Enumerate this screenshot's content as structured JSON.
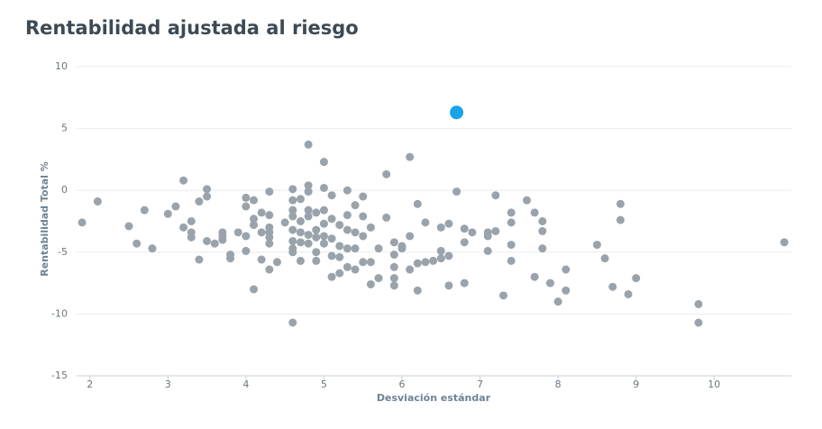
{
  "chart_data": {
    "type": "scatter",
    "title": "Rentabilidad ajustada al riesgo",
    "x_label": "Desviación estándar",
    "y_label": "Rentabilidad Total %",
    "xlim": [
      1.83,
      10.99
    ],
    "ylim": [
      -15,
      10
    ],
    "xticks": [
      2,
      3,
      4,
      5,
      6,
      7,
      8,
      9,
      10
    ],
    "yticks": [
      -15,
      -10,
      -5,
      0,
      5,
      10
    ],
    "grid": true,
    "series": [
      {
        "color": "#9aa3ab",
        "x": [
          1.9,
          2.1,
          2.5,
          2.6,
          2.7,
          2.8,
          3.0,
          3.1,
          3.2,
          3.2,
          3.3,
          3.3,
          3.3,
          3.4,
          3.4,
          3.5,
          3.5,
          3.5,
          3.6,
          3.7,
          3.7,
          3.7,
          3.8,
          3.8,
          3.9,
          4.0,
          4.0,
          4.0,
          4.0,
          4.1,
          4.1,
          4.1,
          4.1,
          4.2,
          4.2,
          4.2,
          4.3,
          4.3,
          4.3,
          4.3,
          4.3,
          4.3,
          4.3,
          4.4,
          4.5,
          4.6,
          4.6,
          4.6,
          4.6,
          4.6,
          4.6,
          4.6,
          4.6,
          4.6,
          4.7,
          4.7,
          4.7,
          4.7,
          4.7,
          4.8,
          4.8,
          4.8,
          4.8,
          4.8,
          4.8,
          4.8,
          4.9,
          4.9,
          4.9,
          4.9,
          4.9,
          5.0,
          5.0,
          5.0,
          5.0,
          5.0,
          5.0,
          5.1,
          5.1,
          5.1,
          5.1,
          5.1,
          5.2,
          5.2,
          5.2,
          5.2,
          5.3,
          5.3,
          5.3,
          5.3,
          5.3,
          5.4,
          5.4,
          5.4,
          5.4,
          5.5,
          5.5,
          5.5,
          5.5,
          5.6,
          5.6,
          5.6,
          5.7,
          5.7,
          5.8,
          5.8,
          5.9,
          5.9,
          5.9,
          5.9,
          5.9,
          6.0,
          6.0,
          6.1,
          6.1,
          6.1,
          6.2,
          6.2,
          6.2,
          6.3,
          6.3,
          6.4,
          6.5,
          6.5,
          6.5,
          6.6,
          6.6,
          6.6,
          6.7,
          6.8,
          6.8,
          6.8,
          6.9,
          7.1,
          7.1,
          7.1,
          7.2,
          7.2,
          7.3,
          7.4,
          7.4,
          7.4,
          7.4,
          7.6,
          7.7,
          7.7,
          7.8,
          7.8,
          7.8,
          7.9,
          8.0,
          8.1,
          8.1,
          8.5,
          8.6,
          8.7,
          8.8,
          8.8,
          8.9,
          9.0,
          9.8,
          9.8,
          10.9
        ],
        "y": [
          -2.6,
          -0.9,
          -2.9,
          -4.3,
          -1.6,
          -4.7,
          -1.9,
          -1.3,
          0.8,
          -3.0,
          -2.5,
          -3.4,
          -3.8,
          -0.9,
          -5.6,
          0.1,
          -0.5,
          -4.1,
          -4.3,
          -3.4,
          -3.7,
          -4.0,
          -5.2,
          -5.5,
          -3.4,
          -0.6,
          -1.3,
          -3.7,
          -4.9,
          -0.8,
          -2.3,
          -2.8,
          -8.0,
          -1.8,
          -3.4,
          -5.6,
          -0.1,
          -2.0,
          -3.0,
          -3.4,
          -3.8,
          -4.3,
          -6.4,
          -5.8,
          -2.6,
          0.1,
          -0.8,
          -1.6,
          -2.1,
          -3.2,
          -4.1,
          -4.7,
          -5.0,
          -10.7,
          -0.7,
          -2.5,
          -3.4,
          -4.2,
          -5.7,
          3.7,
          0.4,
          -0.1,
          -1.6,
          -2.1,
          -3.6,
          -4.3,
          -1.8,
          -3.2,
          -3.8,
          -5.0,
          -5.7,
          2.3,
          0.2,
          -1.6,
          -2.7,
          -3.7,
          -4.3,
          -0.4,
          -2.3,
          -3.9,
          -5.3,
          -7.0,
          -2.8,
          -4.5,
          -5.4,
          -6.7,
          0.0,
          -2.0,
          -3.2,
          -4.7,
          -6.2,
          -1.2,
          -3.4,
          -4.7,
          -6.4,
          -0.5,
          -2.1,
          -3.7,
          -5.8,
          -3.0,
          -5.8,
          -7.6,
          -4.7,
          -7.1,
          1.3,
          -2.2,
          -4.2,
          -5.2,
          -6.2,
          -7.1,
          -7.7,
          -4.5,
          -4.7,
          2.7,
          -3.7,
          -6.4,
          -1.1,
          -5.9,
          -8.1,
          -2.6,
          -5.8,
          -5.7,
          -3.0,
          -4.9,
          -5.5,
          -2.7,
          -5.3,
          -7.7,
          -0.1,
          -3.1,
          -4.2,
          -7.5,
          -3.4,
          -3.4,
          -3.7,
          -4.9,
          -0.4,
          -3.3,
          -8.5,
          -1.8,
          -2.6,
          -4.4,
          -5.7,
          -0.8,
          -1.8,
          -7.0,
          -2.5,
          -3.3,
          -4.7,
          -7.5,
          -9.0,
          -6.4,
          -8.1,
          -4.4,
          -5.5,
          -7.8,
          -1.1,
          -2.4,
          -8.4,
          -7.1,
          -9.2,
          -10.7,
          -4.2
        ]
      },
      {
        "color": "#1ba3e8",
        "x": [
          6.7
        ],
        "y": [
          6.3
        ]
      }
    ]
  }
}
